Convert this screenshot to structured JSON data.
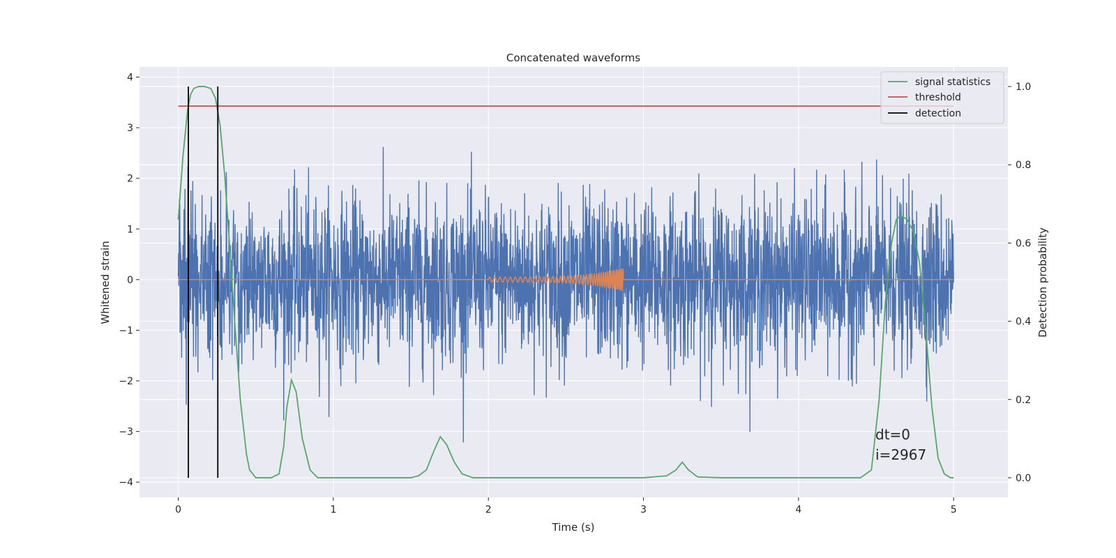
{
  "chart_data": {
    "type": "line",
    "title": "Concatenated waveforms",
    "xlabel": "Time (s)",
    "ylabel": "Whitened strain",
    "y2label": "Detection probability",
    "xlim": [
      -0.25,
      5.35
    ],
    "ylim": [
      -4.3,
      4.2
    ],
    "y2lim": [
      -0.05,
      1.05
    ],
    "xticks": [
      0,
      1,
      2,
      3,
      4,
      5
    ],
    "yticks": [
      -4,
      -3,
      -2,
      -1,
      0,
      1,
      2,
      3,
      4
    ],
    "y2ticks": [
      0.0,
      0.2,
      0.4,
      0.6,
      0.8,
      1.0
    ],
    "xtick_labels": [
      "0",
      "1",
      "2",
      "3",
      "4",
      "5"
    ],
    "ytick_labels": [
      "−4",
      "−3",
      "−2",
      "−1",
      "0",
      "1",
      "2",
      "3",
      "4"
    ],
    "y2tick_labels": [
      "0.0",
      "0.2",
      "0.4",
      "0.6",
      "0.8",
      "1.0"
    ],
    "grid": true,
    "legend_position": "top-right",
    "colors": {
      "strain": "#4c72b0",
      "waveform": "#dd8452",
      "signal_statistics": "#55a868",
      "threshold": "#c44e52",
      "detection": "#000000",
      "axes_face": "#eaeaf2",
      "grid": "#ffffff"
    },
    "strain": {
      "t_start": 0.0,
      "t_end": 5.0,
      "typical_abs": 0.8,
      "max": 3.8,
      "min": -4.0
    },
    "waveform": {
      "t_start": 2.0,
      "t_end": 2.87,
      "start_amp": 0.05,
      "peak_amp": 0.22
    },
    "series": [
      {
        "name": "signal statistics",
        "axis": "right",
        "x": [
          0.0,
          0.03,
          0.06,
          0.08,
          0.1,
          0.13,
          0.17,
          0.21,
          0.24,
          0.27,
          0.3,
          0.33,
          0.36,
          0.4,
          0.44,
          0.46,
          0.5,
          0.6,
          0.65,
          0.68,
          0.7,
          0.73,
          0.76,
          0.8,
          0.85,
          0.9,
          1.0,
          1.5,
          1.55,
          1.6,
          1.65,
          1.69,
          1.73,
          1.78,
          1.83,
          1.9,
          2.0,
          3.0,
          3.15,
          3.21,
          3.25,
          3.29,
          3.35,
          3.5,
          4.0,
          4.4,
          4.47,
          4.52,
          4.56,
          4.6,
          4.63,
          4.66,
          4.7,
          4.74,
          4.78,
          4.82,
          4.86,
          4.9,
          4.94,
          4.98,
          5.0
        ],
        "y": [
          0.66,
          0.82,
          0.94,
          0.98,
          0.995,
          1.0,
          1.0,
          0.995,
          0.97,
          0.9,
          0.77,
          0.6,
          0.42,
          0.2,
          0.06,
          0.02,
          0.0,
          0.0,
          0.01,
          0.08,
          0.18,
          0.25,
          0.22,
          0.1,
          0.02,
          0.0,
          0.0,
          0.0,
          0.005,
          0.02,
          0.07,
          0.105,
          0.085,
          0.04,
          0.01,
          0.0,
          0.0,
          0.0,
          0.005,
          0.02,
          0.04,
          0.02,
          0.002,
          0.0,
          0.0,
          0.0,
          0.02,
          0.2,
          0.45,
          0.6,
          0.66,
          0.67,
          0.66,
          0.63,
          0.55,
          0.38,
          0.18,
          0.05,
          0.01,
          0.0,
          0.0
        ]
      },
      {
        "name": "threshold",
        "axis": "right",
        "x": [
          0.0,
          5.0
        ],
        "y": [
          0.95,
          0.95
        ]
      },
      {
        "name": "detection",
        "axis": "right",
        "x": [
          0.065,
          0.255
        ],
        "y_range": [
          0.0,
          1.0
        ]
      }
    ],
    "annotations": [
      "dt=0",
      "i=2967"
    ]
  }
}
